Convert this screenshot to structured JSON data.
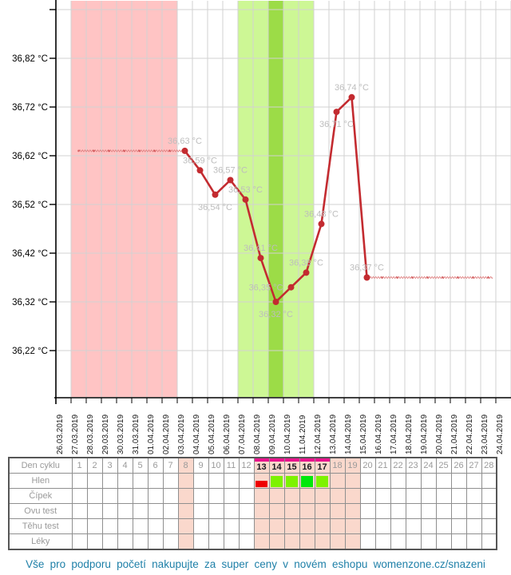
{
  "chart_data": {
    "type": "line",
    "y_ticks": [
      {
        "value": 36.82,
        "label": "36,82 °C"
      },
      {
        "value": 36.72,
        "label": "36,72 °C"
      },
      {
        "value": 36.62,
        "label": "36,62 °C"
      },
      {
        "value": 36.52,
        "label": "36,52 °C"
      },
      {
        "value": 36.42,
        "label": "36,42 °C"
      },
      {
        "value": 36.32,
        "label": "36,32 °C"
      },
      {
        "value": 36.22,
        "label": "36,22 °C"
      }
    ],
    "ylim": [
      36.12,
      36.92
    ],
    "grid": true,
    "x_labels": [
      "26.03.2019",
      "27.03.2019",
      "28.03.2019",
      "29.03.2019",
      "30.03.2019",
      "31.03.2019",
      "01.04.2019",
      "02.04.2019",
      "03.04.2019",
      "04.04.2019",
      "05.04.2019",
      "06.04.2019",
      "07.04.2019",
      "08.04.2019",
      "09.04.2019",
      "10.04.2019",
      "11.04.2019",
      "12.04.2019",
      "13.04.2019",
      "14.04.2019",
      "15.04.2019",
      "16.04.2019",
      "17.04.2019",
      "18.04.2019",
      "19.04.2019",
      "20.04.2019",
      "21.04.2019",
      "22.04.2019",
      "23.04.2019",
      "24.04.2019"
    ],
    "days_in_chart": 30,
    "points": [
      {
        "day": 9,
        "date": "03.04.2019",
        "temp": 36.63,
        "label": "36,63 °C",
        "label_pos": "above"
      },
      {
        "day": 10,
        "date": "04.04.2019",
        "temp": 36.59,
        "label": "36,59 °C",
        "label_pos": "above"
      },
      {
        "day": 11,
        "date": "05.04.2019",
        "temp": 36.54,
        "label": "36,54 °C",
        "label_pos": "below"
      },
      {
        "day": 12,
        "date": "06.04.2019",
        "temp": 36.57,
        "label": "36,57 °C",
        "label_pos": "above"
      },
      {
        "day": 13,
        "date": "07.04.2019",
        "temp": 36.53,
        "label": "36,53 °C",
        "label_pos": "above"
      },
      {
        "day": 14,
        "date": "08.04.2019",
        "temp": 36.41,
        "label": "36,41 °C",
        "label_pos": "above"
      },
      {
        "day": 15,
        "date": "09.04.2019",
        "temp": 36.32,
        "label": "36,32 °C",
        "label_pos": "below"
      },
      {
        "day": 16,
        "date": "10.04.2019",
        "temp": 36.35,
        "label": "36,35 °C",
        "label_pos": "left"
      },
      {
        "day": 17,
        "date": "11.04.2019",
        "temp": 36.38,
        "label": "36,38 °C",
        "label_pos": "above"
      },
      {
        "day": 18,
        "date": "12.04.2019",
        "temp": 36.48,
        "label": "36,48 °C",
        "label_pos": "above"
      },
      {
        "day": 19,
        "date": "13.04.2019",
        "temp": 36.71,
        "label": "36,71 °C",
        "label_pos": "below"
      },
      {
        "day": 20,
        "date": "14.04.2019",
        "temp": 36.74,
        "label": "36,74 °C",
        "label_pos": "above"
      },
      {
        "day": 21,
        "date": "15.04.2019",
        "temp": 36.37,
        "label": "36,37 °C",
        "label_pos": "above"
      }
    ],
    "baselines": [
      {
        "temp": 36.63,
        "from_day": 2,
        "to_day": 9,
        "style": "zigzag"
      },
      {
        "temp": 36.37,
        "from_day": 21,
        "to_day": 30,
        "style": "zigzag"
      }
    ],
    "bands": [
      {
        "name": "menstruation",
        "from_day": 2,
        "to_day": 8,
        "color_key": "band_red"
      },
      {
        "name": "fertile",
        "from_day": 13,
        "to_day": 17,
        "color_key": "band_light_green"
      },
      {
        "name": "ovulation",
        "from_day": 15,
        "to_day": 15,
        "color_key": "band_dark_green"
      }
    ]
  },
  "table": {
    "row_labels": [
      "Den cyklu",
      "Hlen",
      "Čípek",
      "Ovu test",
      "Těhu test",
      "Léky"
    ],
    "day_count": 28,
    "pink_days": [
      8,
      13,
      14,
      15,
      16,
      17,
      18,
      19
    ],
    "bar_days": [
      13,
      14,
      15,
      16,
      17
    ],
    "hlen_markers": [
      {
        "day": 13,
        "type": "red"
      },
      {
        "day": 14,
        "type": "chartreuse"
      },
      {
        "day": 15,
        "type": "chartreuse"
      },
      {
        "day": 16,
        "type": "green"
      },
      {
        "day": 17,
        "type": "chartreuse"
      }
    ]
  },
  "footer": {
    "text": "Vše pro podporu početí nakupujte za super ceny v novém eshopu womenzone.cz/snazeni"
  },
  "colors": {
    "band_red": "#FFC4C4",
    "band_light_green": "#CDF795",
    "band_dark_green": "#9CDC47",
    "grid": "#D2D2D2",
    "axis": "#000000",
    "line": "#C32B30",
    "zigzag": "#E08484",
    "point_label": "#BDBDBD",
    "x_label": "#1a1a1a",
    "table_pink": "#FAD8CC",
    "magenta_bar": "#EA128E",
    "hlen_red": "#EE0000",
    "hlen_chartreuse": "#7DF201",
    "hlen_green": "#00E80B",
    "footer_text": "#1F80A8"
  }
}
